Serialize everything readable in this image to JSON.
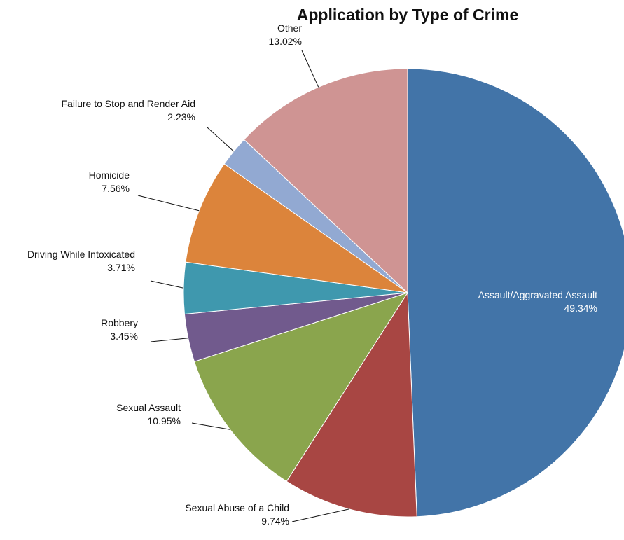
{
  "chart_data": {
    "type": "pie",
    "title": "Application by Type of Crime",
    "slices": [
      {
        "label": "Assault/Aggravated Assault",
        "value": 49.34,
        "display": "49.34%",
        "color": "#4274a8"
      },
      {
        "label": "Sexual Abuse of a Child",
        "value": 9.74,
        "display": "9.74%",
        "color": "#a84643"
      },
      {
        "label": "Sexual Assault",
        "value": 10.95,
        "display": "10.95%",
        "color": "#8aa54d"
      },
      {
        "label": "Robbery",
        "value": 3.45,
        "display": "3.45%",
        "color": "#715a8d"
      },
      {
        "label": "Driving While Intoxicated",
        "value": 3.71,
        "display": "3.71%",
        "color": "#3f98ae"
      },
      {
        "label": "Homicide",
        "value": 7.56,
        "display": "7.56%",
        "color": "#dc843b"
      },
      {
        "label": "Failure to Stop and Render Aid",
        "value": 2.23,
        "display": "2.23%",
        "color": "#92a9d2"
      },
      {
        "label": "Other",
        "value": 13.02,
        "display": "13.02%",
        "color": "#cf9493"
      }
    ]
  }
}
